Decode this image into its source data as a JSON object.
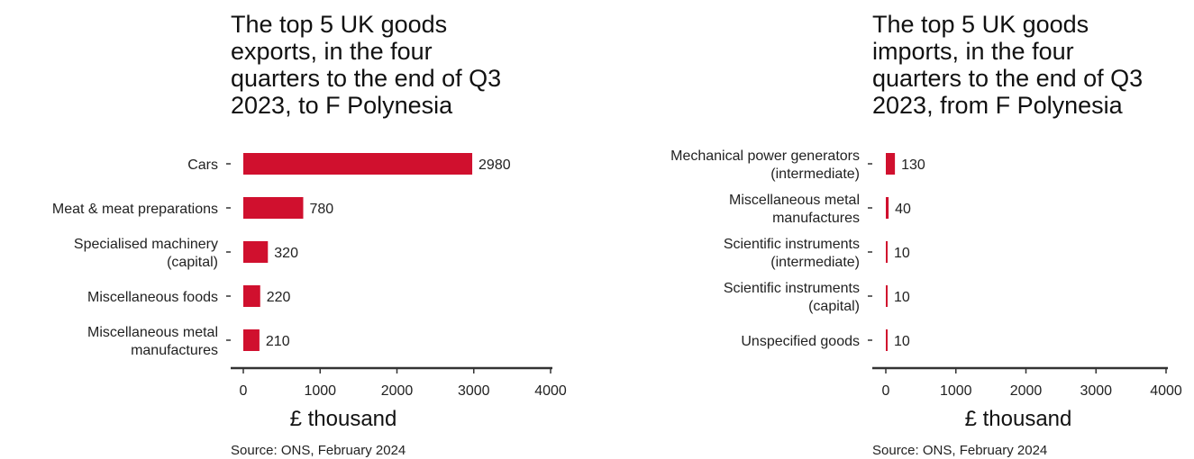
{
  "colors": {
    "bar": "#d0102e",
    "axis": "#333333",
    "text": "#222222"
  },
  "source": "Source: ONS, February 2024",
  "chart_data": [
    {
      "type": "bar",
      "orientation": "horizontal",
      "title": "The top 5 UK goods\nexports, in the four\nquarters to the end of Q3\n2023, to F Polynesia",
      "xlabel": "£ thousand",
      "ylabel": "",
      "categories": [
        "Cars",
        "Meat & meat preparations",
        "Specialised machinery\n(capital)",
        "Miscellaneous foods",
        "Miscellaneous metal\nmanufactures"
      ],
      "values": [
        2980,
        780,
        320,
        220,
        210
      ],
      "value_labels": [
        "2980",
        "780",
        "320",
        "220",
        "210"
      ],
      "xlim": [
        0,
        4000
      ],
      "xticks": [
        "0",
        "1000",
        "2000",
        "3000",
        "4000"
      ],
      "grid": false,
      "source": "Source: ONS, February 2024"
    },
    {
      "type": "bar",
      "orientation": "horizontal",
      "title": "The top 5 UK goods\nimports, in the four\nquarters to the end of Q3\n2023, from F Polynesia",
      "xlabel": "£ thousand",
      "ylabel": "",
      "categories": [
        "Mechanical power generators\n(intermediate)",
        "Miscellaneous metal\nmanufactures",
        "Scientific instruments\n(intermediate)",
        "Scientific instruments\n(capital)",
        "Unspecified goods"
      ],
      "values": [
        130,
        40,
        10,
        10,
        10
      ],
      "value_labels": [
        "130",
        "40",
        "10",
        "10",
        "10"
      ],
      "xlim": [
        0,
        4000
      ],
      "xticks": [
        "0",
        "1000",
        "2000",
        "3000",
        "4000"
      ],
      "grid": false,
      "source": "Source: ONS, February 2024"
    }
  ]
}
